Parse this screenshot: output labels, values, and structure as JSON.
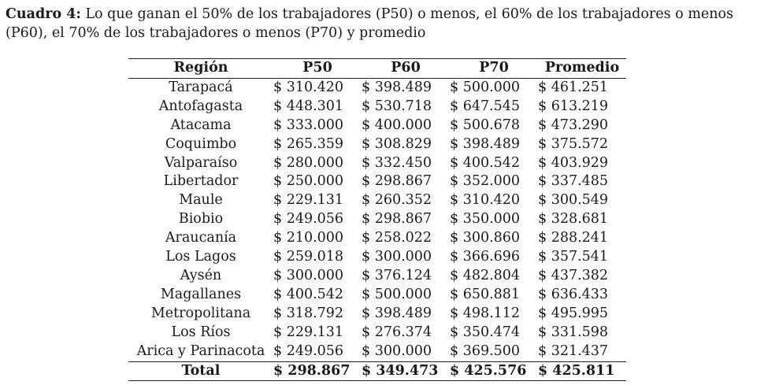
{
  "caption": {
    "label": "Cuadro 4:",
    "text": "Lo que ganan el 50% de los trabajadores (P50) o menos, el 60% de los trabajadores o menos (P60), el 70% de los trabajadores o menos (P70) y promedio"
  },
  "table": {
    "headers": [
      "Región",
      "P50",
      "P60",
      "P70",
      "Promedio"
    ],
    "rows": [
      [
        "Tarapacá",
        "$ 310.420",
        "$ 398.489",
        "$ 500.000",
        "$ 461.251"
      ],
      [
        "Antofagasta",
        "$ 448.301",
        "$ 530.718",
        "$ 647.545",
        "$ 613.219"
      ],
      [
        "Atacama",
        "$ 333.000",
        "$ 400.000",
        "$ 500.678",
        "$ 473.290"
      ],
      [
        "Coquimbo",
        "$ 265.359",
        "$ 308.829",
        "$ 398.489",
        "$ 375.572"
      ],
      [
        "Valparaíso",
        "$ 280.000",
        "$ 332.450",
        "$ 400.542",
        "$ 403.929"
      ],
      [
        "Libertador",
        "$ 250.000",
        "$ 298.867",
        "$ 352.000",
        "$ 337.485"
      ],
      [
        "Maule",
        "$ 229.131",
        "$ 260.352",
        "$ 310.420",
        "$ 300.549"
      ],
      [
        "Biobio",
        "$ 249.056",
        "$ 298.867",
        "$ 350.000",
        "$ 328.681"
      ],
      [
        "Araucanía",
        "$ 210.000",
        "$ 258.022",
        "$ 300.860",
        "$ 288.241"
      ],
      [
        "Los Lagos",
        "$ 259.018",
        "$ 300.000",
        "$ 366.696",
        "$ 357.541"
      ],
      [
        "Aysén",
        "$ 300.000",
        "$ 376.124",
        "$ 482.804",
        "$ 437.382"
      ],
      [
        "Magallanes",
        "$ 400.542",
        "$ 500.000",
        "$ 650.881",
        "$ 636.433"
      ],
      [
        "Metropolitana",
        "$ 318.792",
        "$ 398.489",
        "$ 498.112",
        "$ 495.995"
      ],
      [
        "Los Ríos",
        "$ 229.131",
        "$ 276.374",
        "$ 350.474",
        "$ 331.598"
      ],
      [
        "Arica y Parinacota",
        "$ 249.056",
        "$ 300.000",
        "$ 369.500",
        "$ 321.437"
      ]
    ],
    "total": [
      "Total",
      "$ 298.867",
      "$ 349.473",
      "$ 425.576",
      "$ 425.811"
    ]
  }
}
